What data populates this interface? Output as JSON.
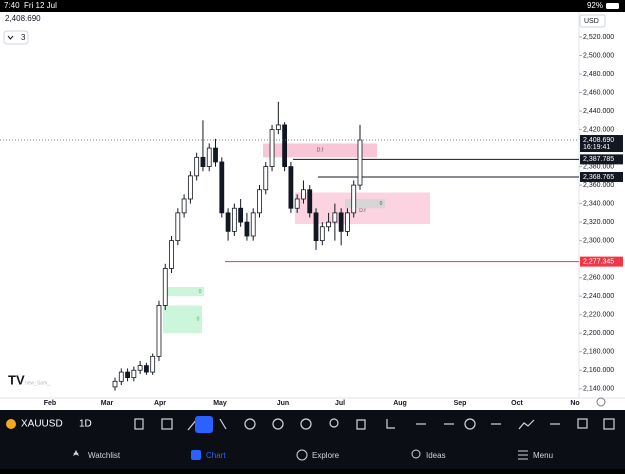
{
  "status_bar": {
    "time": "7:40",
    "date": "Fri 12 Jul",
    "battery": "92%"
  },
  "chart_data": {
    "type": "candlestick",
    "symbol": "XAUUSD",
    "interval": "1D",
    "currency": "USD",
    "last_price_label": "2,408.690",
    "countdown": "16:19:41",
    "dropdown": "3",
    "watermark": "new_Sam_",
    "open": [
      2142,
      2148,
      2158,
      2152,
      2160,
      2165,
      2158,
      2175,
      2230,
      2270,
      2300,
      2330,
      2345,
      2370,
      2390,
      2380,
      2400,
      2385,
      2330,
      2310,
      2335,
      2320,
      2305,
      2330,
      2355,
      2380,
      2420,
      2425,
      2380,
      2335,
      2345,
      2355,
      2330,
      2300,
      2315,
      2320,
      2330,
      2310,
      2330,
      2360
    ],
    "high": [
      2152,
      2162,
      2162,
      2164,
      2170,
      2168,
      2178,
      2235,
      2275,
      2305,
      2335,
      2350,
      2375,
      2395,
      2430,
      2405,
      2410,
      2390,
      2335,
      2340,
      2345,
      2330,
      2335,
      2360,
      2385,
      2425,
      2450,
      2428,
      2385,
      2350,
      2365,
      2360,
      2335,
      2320,
      2330,
      2340,
      2335,
      2335,
      2365,
      2425
    ],
    "low": [
      2138,
      2144,
      2148,
      2148,
      2156,
      2155,
      2155,
      2170,
      2225,
      2265,
      2295,
      2325,
      2340,
      2365,
      2375,
      2375,
      2380,
      2325,
      2300,
      2305,
      2315,
      2300,
      2300,
      2325,
      2350,
      2375,
      2415,
      2375,
      2330,
      2330,
      2340,
      2325,
      2290,
      2295,
      2310,
      2300,
      2295,
      2305,
      2325,
      2355
    ],
    "close": [
      2148,
      2158,
      2152,
      2160,
      2165,
      2158,
      2175,
      2230,
      2270,
      2300,
      2330,
      2345,
      2370,
      2390,
      2380,
      2400,
      2385,
      2330,
      2310,
      2335,
      2320,
      2305,
      2330,
      2355,
      2380,
      2420,
      2425,
      2380,
      2335,
      2345,
      2355,
      2330,
      2300,
      2315,
      2320,
      2330,
      2310,
      2330,
      2360,
      2408.69
    ],
    "up_color": "#ffffff",
    "down_color": "#131722",
    "ylim": [
      2130,
      2547
    ],
    "yticks": [
      {
        "value": 2520,
        "label": "2,520.000"
      },
      {
        "value": 2500,
        "label": "2,500.000"
      },
      {
        "value": 2480,
        "label": "2,480.000"
      },
      {
        "value": 2460,
        "label": "2,460.000"
      },
      {
        "value": 2440,
        "label": "2,440.000"
      },
      {
        "value": 2420,
        "label": "2,420.000"
      },
      {
        "value": 2380,
        "label": "2,380.000"
      },
      {
        "value": 2360,
        "label": "2,360.000"
      },
      {
        "value": 2340,
        "label": "2,340.000"
      },
      {
        "value": 2320,
        "label": "2,320.000"
      },
      {
        "value": 2300,
        "label": "2,300.000"
      },
      {
        "value": 2260,
        "label": "2,260.000"
      },
      {
        "value": 2240,
        "label": "2,240.000"
      },
      {
        "value": 2220,
        "label": "2,220.000"
      },
      {
        "value": 2200,
        "label": "2,200.000"
      },
      {
        "value": 2180,
        "label": "2,180.000"
      },
      {
        "value": 2160,
        "label": "2,160.000"
      },
      {
        "value": 2140,
        "label": "2,140.000"
      }
    ],
    "months": [
      "Feb",
      "Mar",
      "Apr",
      "May",
      "Jun",
      "Jul",
      "Aug",
      "Sep",
      "Oct",
      "No"
    ],
    "price_lines": [
      {
        "value": 2387.785,
        "label": "2,387.785",
        "color": "#131722"
      },
      {
        "value": 2368.765,
        "label": "2,368.765",
        "color": "#131722"
      },
      {
        "value": 2277.345,
        "label": "2,277.345",
        "color": "#f23645"
      }
    ],
    "zones": [
      {
        "top": 2405,
        "bottom": 2390,
        "label": "D.f",
        "color": "#f8c6d6"
      },
      {
        "top": 2352,
        "bottom": 2318,
        "label": "D.f",
        "color": "#fcd3e0"
      },
      {
        "top": 2345,
        "bottom": 2335,
        "label": "0",
        "color": "#d6d6d6"
      },
      {
        "top": 2250,
        "bottom": 2240,
        "label": "0",
        "color": "#cdf5dc"
      },
      {
        "top": 2230,
        "bottom": 2200,
        "label": "0",
        "color": "#cdf5dc"
      }
    ]
  },
  "nav": [
    "Watchlist",
    "Chart",
    "Explore",
    "Ideas",
    "Menu"
  ]
}
